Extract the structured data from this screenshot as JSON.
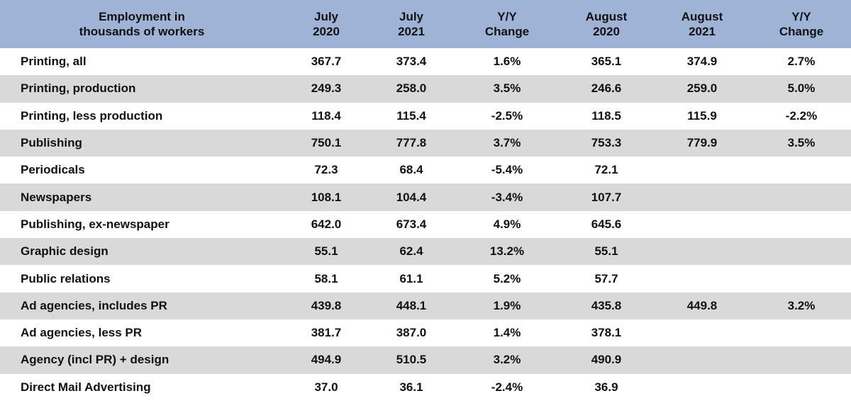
{
  "table": {
    "headers": [
      "Employment in\nthousands of workers",
      "July\n2020",
      "July\n2021",
      "Y/Y\nChange",
      "August\n2020",
      "August\n2021",
      "Y/Y\nChange"
    ],
    "rows": [
      [
        "Printing, all",
        "367.7",
        "373.4",
        "1.6%",
        "365.1",
        "374.9",
        "2.7%"
      ],
      [
        "Printing, production",
        "249.3",
        "258.0",
        "3.5%",
        "246.6",
        "259.0",
        "5.0%"
      ],
      [
        "Printing, less production",
        "118.4",
        "115.4",
        "-2.5%",
        "118.5",
        "115.9",
        "-2.2%"
      ],
      [
        "Publishing",
        "750.1",
        "777.8",
        "3.7%",
        "753.3",
        "779.9",
        "3.5%"
      ],
      [
        "Periodicals",
        "72.3",
        "68.4",
        "-5.4%",
        "72.1",
        "",
        ""
      ],
      [
        "Newspapers",
        "108.1",
        "104.4",
        "-3.4%",
        "107.7",
        "",
        ""
      ],
      [
        "Publishing, ex-newspaper",
        "642.0",
        "673.4",
        "4.9%",
        "645.6",
        "",
        ""
      ],
      [
        "Graphic design",
        "55.1",
        "62.4",
        "13.2%",
        "55.1",
        "",
        ""
      ],
      [
        "Public relations",
        "58.1",
        "61.1",
        "5.2%",
        "57.7",
        "",
        ""
      ],
      [
        "Ad agencies, includes PR",
        "439.8",
        "448.1",
        "1.9%",
        "435.8",
        "449.8",
        "3.2%"
      ],
      [
        "Ad agencies, less PR",
        "381.7",
        "387.0",
        "1.4%",
        "378.1",
        "",
        ""
      ],
      [
        "Agency (incl PR) + design",
        "494.9",
        "510.5",
        "3.2%",
        "490.9",
        "",
        ""
      ],
      [
        "Direct Mail Advertising",
        "37.0",
        "36.1",
        "-2.4%",
        "36.9",
        "",
        ""
      ]
    ]
  }
}
